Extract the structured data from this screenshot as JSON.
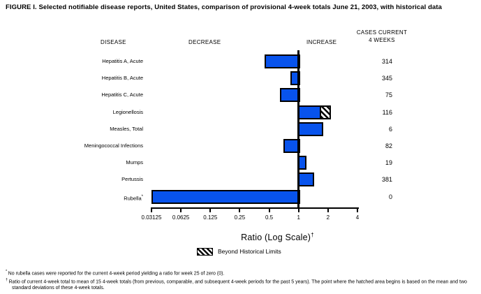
{
  "figure_title": "FIGURE I. Selected notifiable disease reports, United States, comparison of provisional 4-week totals June 21, 2003, with historical data",
  "headers": {
    "disease": "DISEASE",
    "decrease": "DECREASE",
    "increase": "INCREASE",
    "cases_line1": "CASES CURRENT",
    "cases_line2": "4 WEEKS"
  },
  "chart_data": {
    "type": "bar",
    "orientation": "horizontal",
    "x_scale": "log2",
    "x_min": 0.03125,
    "x_max": 4,
    "baseline": 1,
    "x_ticks": [
      "0.03125",
      "0.0625",
      "0.125",
      "0.25",
      "0.5",
      "1",
      "2",
      "4"
    ],
    "xlabel": "Ratio (Log Scale)",
    "xlabel_superscript": "†",
    "bar_color": "#0853ec",
    "legend": {
      "swatch": "black-diagonal-hatch",
      "label": "Beyond Historical Limits"
    },
    "rows": [
      {
        "disease": "Hepatitis A, Acute",
        "ratio": 0.45,
        "cases": "314"
      },
      {
        "disease": "Hepatitis B, Acute",
        "ratio": 0.83,
        "cases": "345"
      },
      {
        "disease": "Hepatitis C, Acute",
        "ratio": 0.64,
        "cases": "75"
      },
      {
        "disease": "Legionellosis",
        "ratio": 2.15,
        "historical_limit": 1.7,
        "beyond_historical_limits": true,
        "cases": "116"
      },
      {
        "disease": "Measles, Total",
        "ratio": 1.8,
        "cases": "6"
      },
      {
        "disease": "Meningococcal Infections",
        "ratio": 0.7,
        "cases": "82"
      },
      {
        "disease": "Mumps",
        "ratio": 1.2,
        "cases": "19"
      },
      {
        "disease": "Pertussis",
        "ratio": 1.45,
        "cases": "381"
      },
      {
        "disease": "Rubella",
        "mark": "*",
        "ratio": 0,
        "cases": "0"
      }
    ]
  },
  "footnotes": [
    {
      "mark": "*",
      "text": "No rubella cases were reported for the current 4-week period yielding a ratio for week 25 of zero (0)."
    },
    {
      "mark": "†",
      "text": "Ratio of current 4-week total to mean of 15 4-week totals (from previous, comparable, and subsequent 4-week periods for the past 5 years). The point where the hatched area begins is based on the mean and two standard deviations of these 4-week totals."
    }
  ]
}
